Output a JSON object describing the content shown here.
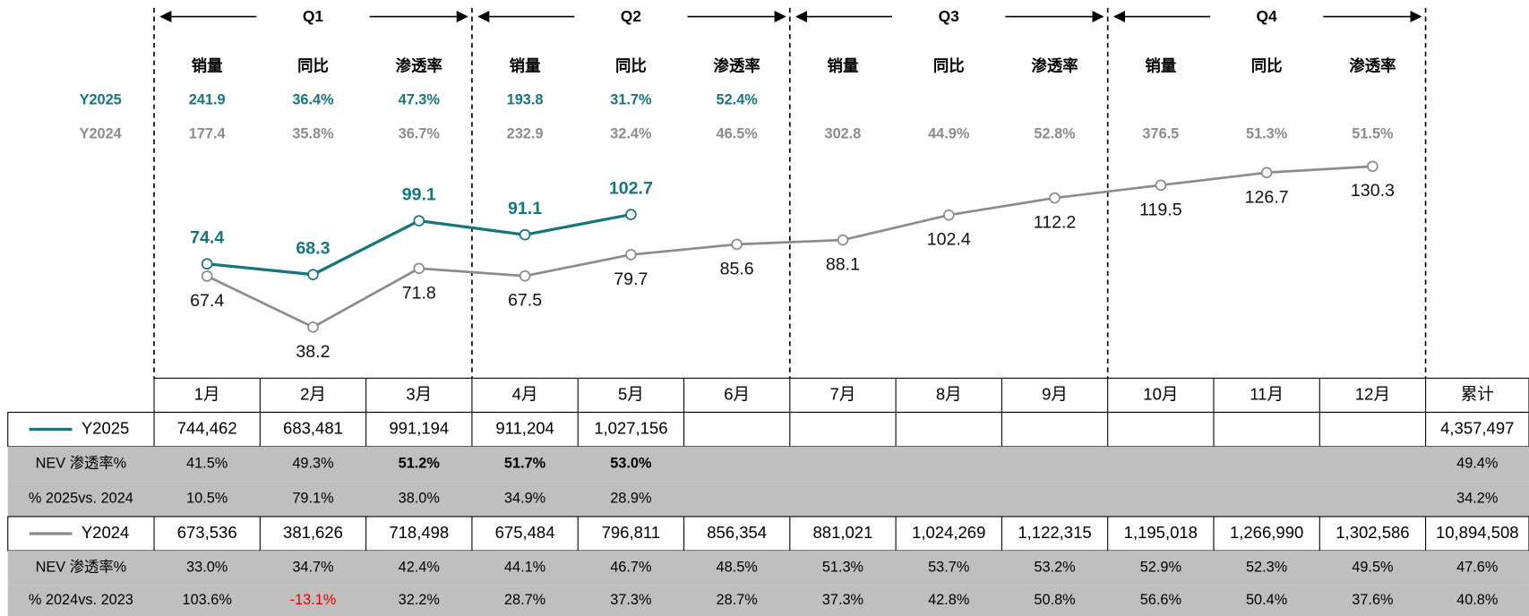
{
  "chart_data": {
    "type": "line",
    "categories": [
      "1月",
      "2月",
      "3月",
      "4月",
      "5月",
      "6月",
      "7月",
      "8月",
      "9月",
      "10月",
      "11月",
      "12月"
    ],
    "series": [
      {
        "name": "Y2025",
        "color": "#17767c",
        "values": [
          74.4,
          68.3,
          99.1,
          91.1,
          102.7,
          null,
          null,
          null,
          null,
          null,
          null,
          null
        ]
      },
      {
        "name": "Y2024",
        "color": "#8c8c8c",
        "values": [
          67.4,
          38.2,
          71.8,
          67.5,
          79.7,
          85.6,
          88.1,
          102.4,
          112.2,
          119.5,
          126.7,
          130.3
        ]
      }
    ],
    "ylim": [
      0,
      220
    ]
  },
  "quarters": [
    {
      "label": "Q1",
      "columns": [
        "销量",
        "同比",
        "渗透率"
      ]
    },
    {
      "label": "Q2",
      "columns": [
        "销量",
        "同比",
        "渗透率"
      ]
    },
    {
      "label": "Q3",
      "columns": [
        "销量",
        "同比",
        "渗透率"
      ]
    },
    {
      "label": "Q4",
      "columns": [
        "销量",
        "同比",
        "渗透率"
      ]
    }
  ],
  "quarter_stats": [
    {
      "label": "Y2025",
      "values": [
        "241.9",
        "36.4%",
        "47.3%",
        "193.8",
        "31.7%",
        "52.4%"
      ]
    },
    {
      "label": "Y2024",
      "values": [
        "177.4",
        "35.8%",
        "36.7%",
        "232.9",
        "32.4%",
        "46.5%",
        "302.8",
        "44.9%",
        "52.8%",
        "376.5",
        "51.3%",
        "51.5%"
      ]
    }
  ],
  "table": {
    "total_header": "累计",
    "rows": [
      {
        "values": [
          "744,462",
          "683,481",
          "991,194",
          "911,204",
          "1,027,156",
          null,
          null,
          null,
          null,
          null,
          null,
          null,
          "4,357,497"
        ]
      },
      {
        "label": "NEV 渗透率%",
        "values": [
          "41.5%",
          "49.3%",
          "51.2%",
          "51.7%",
          "53.0%",
          null,
          null,
          null,
          null,
          null,
          null,
          null,
          "49.4%"
        ]
      },
      {
        "label": "% 2025vs. 2024",
        "values": [
          "10.5%",
          "79.1%",
          "38.0%",
          "34.9%",
          "28.9%",
          null,
          null,
          null,
          null,
          null,
          null,
          null,
          "34.2%"
        ]
      },
      {
        "values": [
          "673,536",
          "381,626",
          "718,498",
          "675,484",
          "796,811",
          "856,354",
          "881,021",
          "1,024,269",
          "1,122,315",
          "1,195,018",
          "1,266,990",
          "1,302,586",
          "10,894,508"
        ]
      },
      {
        "label": "NEV 渗透率%",
        "values": [
          "33.0%",
          "34.7%",
          "42.4%",
          "44.1%",
          "46.7%",
          "48.5%",
          "51.3%",
          "53.7%",
          "53.2%",
          "52.9%",
          "52.3%",
          "49.5%",
          "47.6%"
        ]
      },
      {
        "label": "% 2024vs. 2023",
        "values": [
          "103.6%",
          "-13.1%",
          "32.2%",
          "28.7%",
          "37.3%",
          "28.7%",
          "37.3%",
          "42.8%",
          "50.8%",
          "56.6%",
          "50.4%",
          "37.6%",
          "40.8%"
        ]
      }
    ]
  }
}
